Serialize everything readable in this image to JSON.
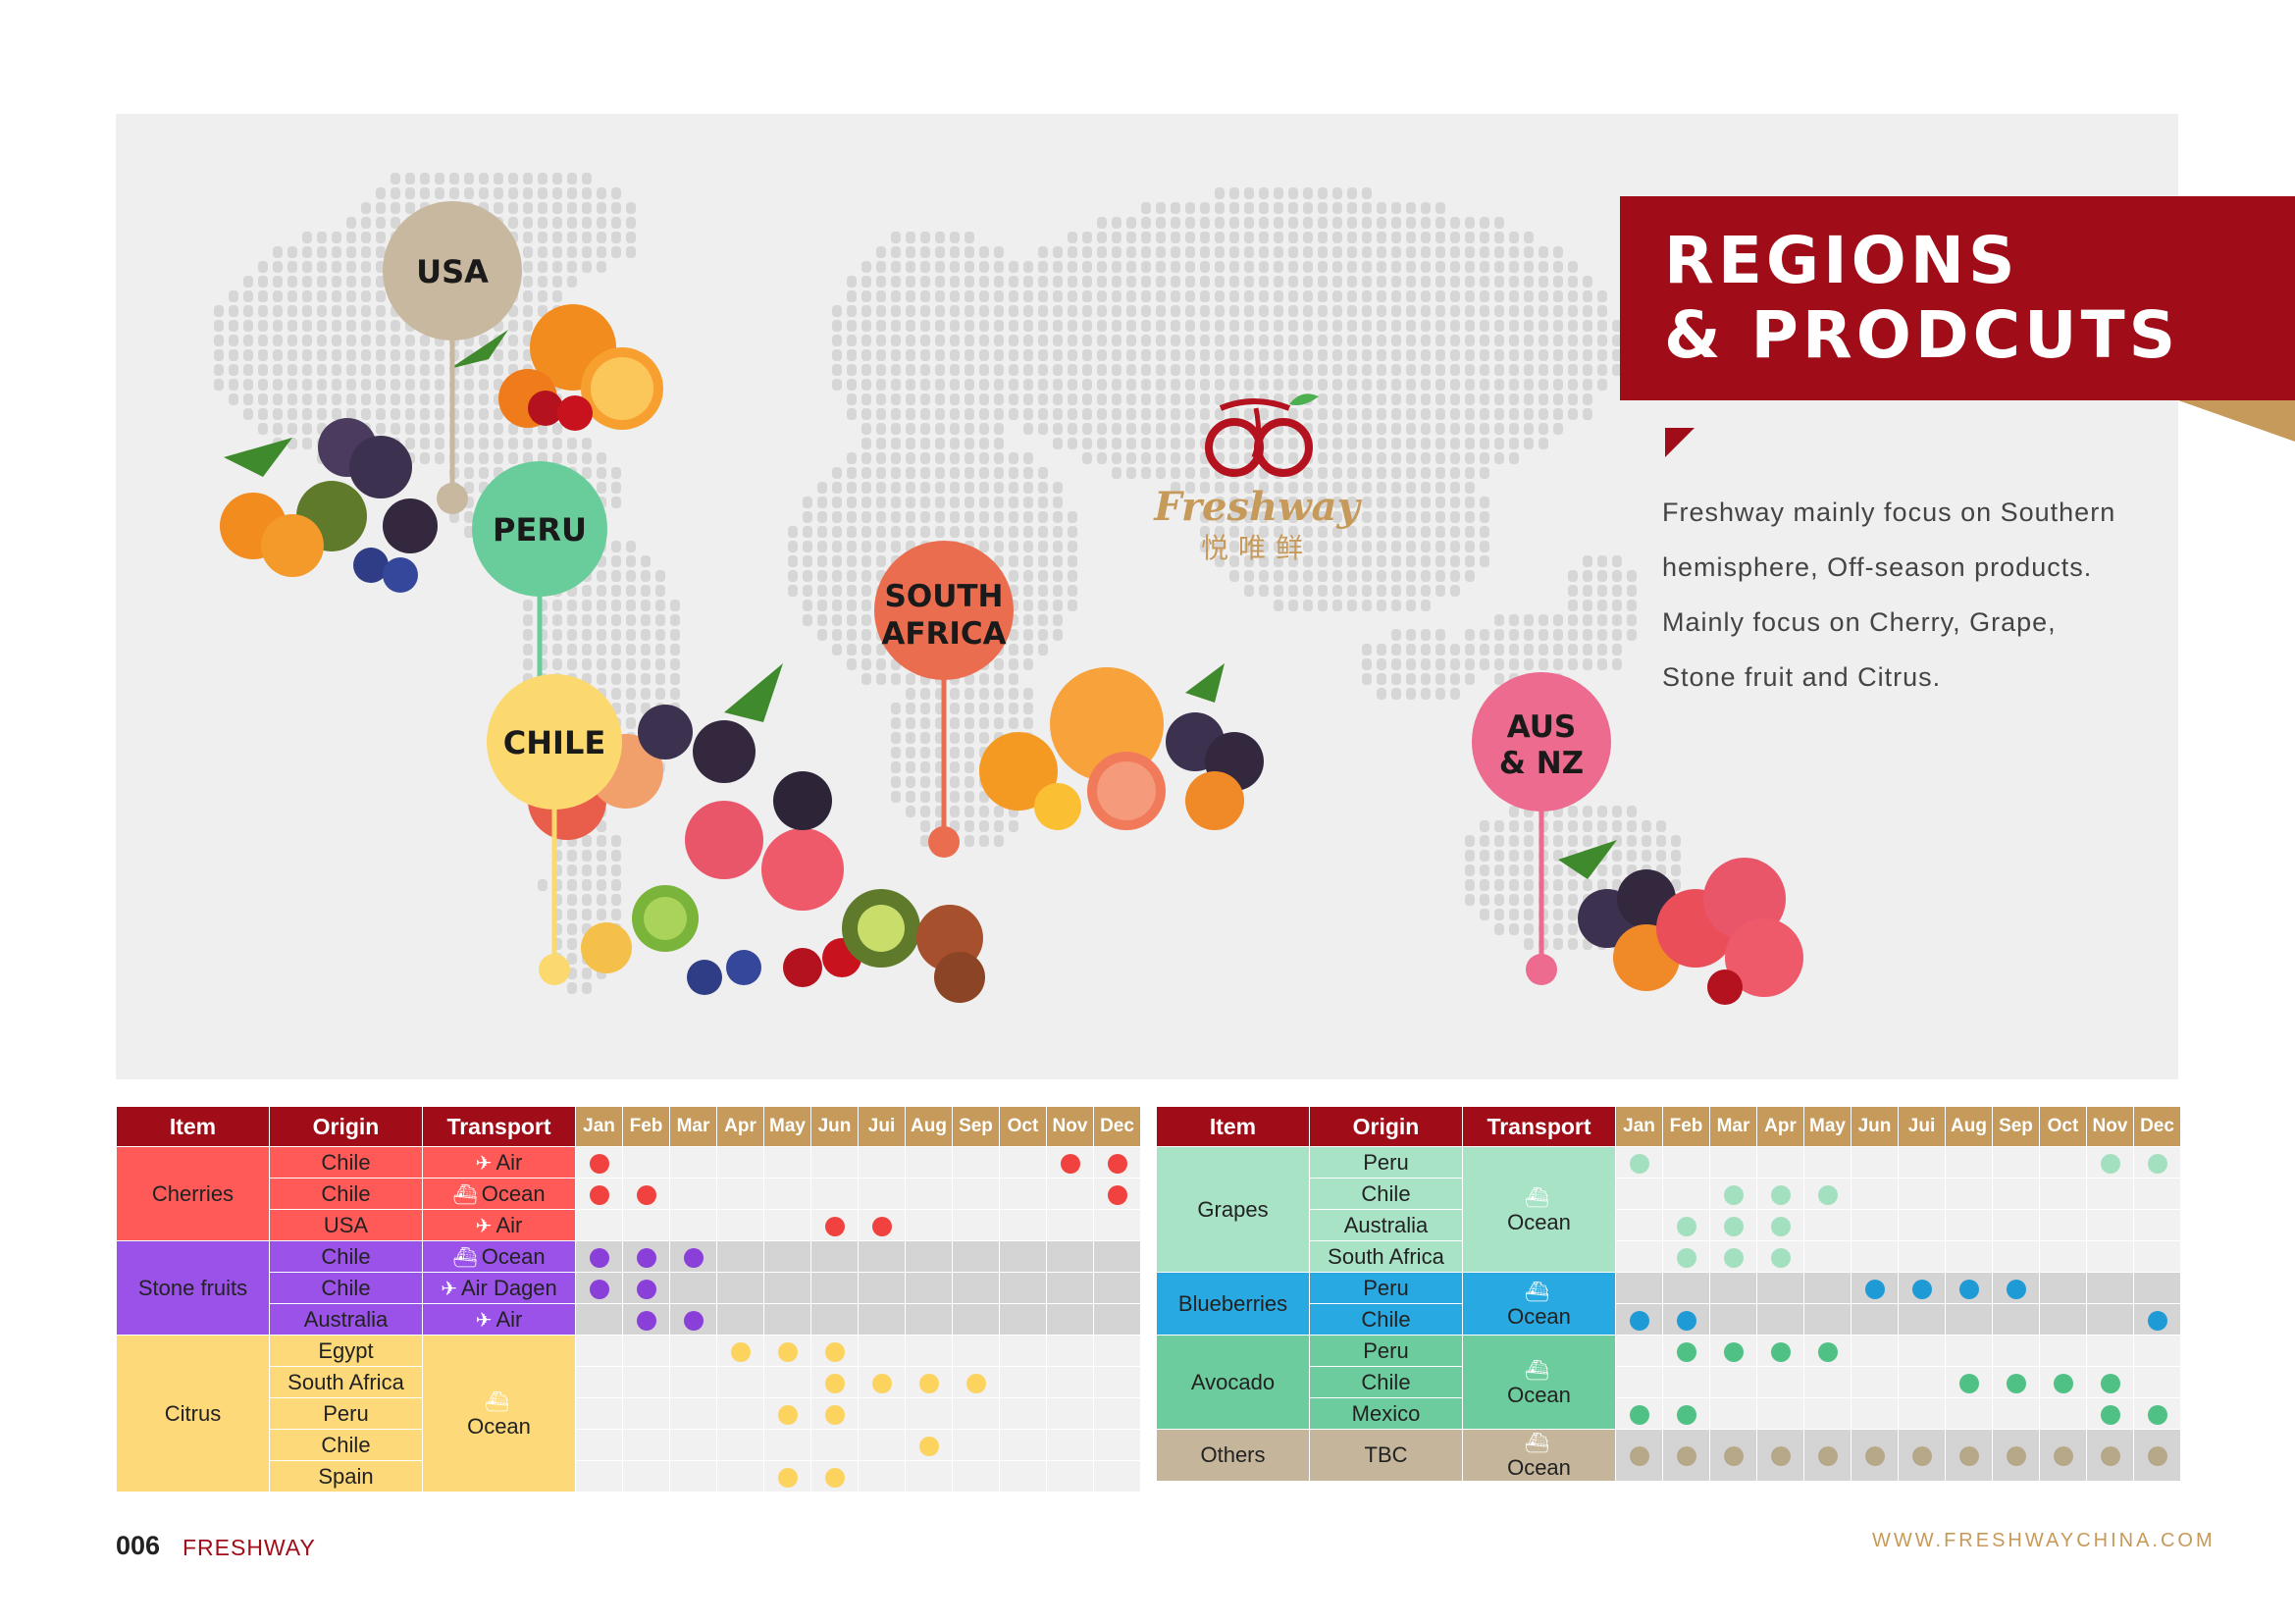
{
  "header": {
    "title_line1": "REGIONS",
    "title_line2": "& PRODCUTS"
  },
  "description": [
    "Freshway mainly focus on Southern",
    "hemisphere, Off-season products.",
    "Mainly focus on Cherry, Grape,",
    "Stone fruit and Citrus."
  ],
  "logo": {
    "name": "Freshway",
    "chinese": "悦唯鲜",
    "icon": "cherry-bicycle-icon"
  },
  "regions": [
    {
      "label1": "USA",
      "label2": "",
      "color": "#c7b89f"
    },
    {
      "label1": "PERU",
      "label2": "",
      "color": "#69cd9b"
    },
    {
      "label1": "CHILE",
      "label2": "",
      "color": "#fbd96f"
    },
    {
      "label1": "SOUTH",
      "label2": "AFRICA",
      "color": "#ea6d4f"
    },
    {
      "label1": "AUS",
      "label2": "& NZ",
      "color": "#ec6b8e"
    }
  ],
  "columns": {
    "item": "Item",
    "origin": "Origin",
    "transport": "Transport",
    "months": [
      "Jan",
      "Feb",
      "Mar",
      "Apr",
      "May",
      "Jun",
      "Jui",
      "Aug",
      "Sep",
      "Oct",
      "Nov",
      "Dec"
    ]
  },
  "colors": {
    "brand_red": "#a00c17",
    "gold": "#c59a5a",
    "cherries": "#ff5a58",
    "cherries_dot": "#f0433f",
    "stone": "#9b52e8",
    "stone_dot": "#8a3fd8",
    "citrus": "#fdd97a",
    "citrus_dot": "#fbd35e",
    "grapes": "#a8e3c6",
    "grapes_dot": "#a3e0c0",
    "blue": "#29a9e1",
    "blue_dot": "#1e9ad6",
    "avocado": "#6dcc9d",
    "avocado_dot": "#4fc185",
    "others": "#c5b59a",
    "others_dot": "#b8a88a"
  },
  "table_left": [
    {
      "item": "Cherries",
      "color": "#ff5a58",
      "dot": "#f0433f",
      "transport_merged": false,
      "rows": [
        {
          "origin": "Chile",
          "transport": "Air",
          "icon": "airplane-icon",
          "months": [
            1,
            11,
            12
          ]
        },
        {
          "origin": "Chile",
          "transport": "Ocean",
          "icon": "ship-icon",
          "months": [
            1,
            2,
            12
          ]
        },
        {
          "origin": "USA",
          "transport": "Air",
          "icon": "airplane-icon",
          "months": [
            6,
            7
          ]
        }
      ]
    },
    {
      "item": "Stone fruits",
      "color": "#9b52e8",
      "dot": "#8a3fd8",
      "transport_merged": false,
      "grey": true,
      "rows": [
        {
          "origin": "Chile",
          "transport": "Ocean",
          "icon": "ship-icon",
          "months": [
            1,
            2,
            3
          ]
        },
        {
          "origin": "Chile",
          "transport": "Air Dagen",
          "icon": "airplane-icon",
          "months": [
            1,
            2
          ]
        },
        {
          "origin": "Australia",
          "transport": "Air",
          "icon": "airplane-icon",
          "months": [
            2,
            3
          ]
        }
      ]
    },
    {
      "item": "Citrus",
      "color": "#fdd97a",
      "dot": "#fbd35e",
      "transport_merged": true,
      "transport": "Ocean",
      "icon": "ship-icon",
      "rows": [
        {
          "origin": "Egypt",
          "months": [
            4,
            5,
            6
          ]
        },
        {
          "origin": "South Africa",
          "months": [
            6,
            7,
            8,
            9
          ]
        },
        {
          "origin": "Peru",
          "months": [
            5,
            6
          ]
        },
        {
          "origin": "Chile",
          "months": [
            8
          ]
        },
        {
          "origin": "Spain",
          "months": [
            5,
            6
          ]
        }
      ]
    }
  ],
  "table_right": [
    {
      "item": "Grapes",
      "color": "#a8e3c6",
      "dot": "#a3e0c0",
      "transport_merged": true,
      "transport": "Ocean",
      "icon": "ship-icon",
      "rows": [
        {
          "origin": "Peru",
          "months": [
            1,
            11,
            12
          ]
        },
        {
          "origin": "Chile",
          "months": [
            3,
            4,
            5
          ]
        },
        {
          "origin": "Australia",
          "months": [
            2,
            3,
            4
          ]
        },
        {
          "origin": "South Africa",
          "months": [
            2,
            3,
            4
          ]
        }
      ]
    },
    {
      "item": "Blueberries",
      "color": "#29a9e1",
      "dot": "#1e9ad6",
      "transport_merged": true,
      "grey": true,
      "transport": "Ocean",
      "icon": "ship-icon",
      "rows": [
        {
          "origin": "Peru",
          "months": [
            6,
            7,
            8,
            9
          ]
        },
        {
          "origin": "Chile",
          "months": [
            1,
            2,
            12
          ]
        }
      ]
    },
    {
      "item": "Avocado",
      "color": "#6dcc9d",
      "dot": "#4fc185",
      "transport_merged": true,
      "transport": "Ocean",
      "icon": "ship-icon",
      "rows": [
        {
          "origin": "Peru",
          "months": [
            2,
            3,
            4,
            5
          ]
        },
        {
          "origin": "Chile",
          "months": [
            8,
            9,
            10,
            11
          ]
        },
        {
          "origin": "Mexico",
          "months": [
            1,
            2,
            11,
            12
          ]
        }
      ]
    },
    {
      "item": "Others",
      "color": "#c5b59a",
      "dot": "#b8a88a",
      "transport_merged": true,
      "grey": true,
      "tall": true,
      "transport": "Ocean",
      "icon": "ship-icon",
      "rows": [
        {
          "origin": "TBC",
          "months": [
            1,
            2,
            3,
            4,
            5,
            6,
            7,
            8,
            9,
            10,
            11,
            12
          ]
        }
      ]
    }
  ],
  "footer": {
    "page_number": "006",
    "brand": "FRESHWAY",
    "url": "WWW.FRESHWAYCHINA.COM"
  }
}
